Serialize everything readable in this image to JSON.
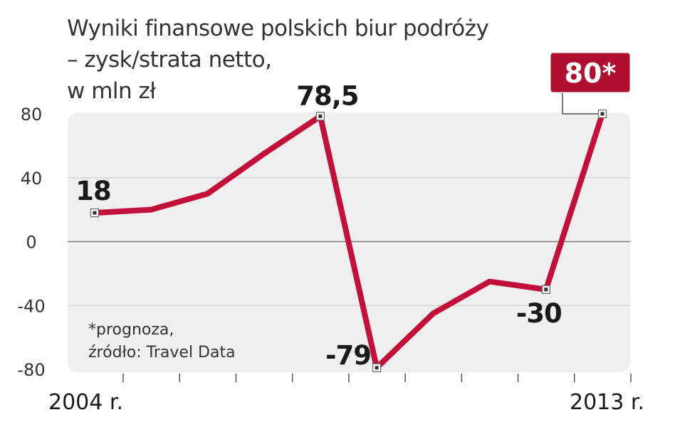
{
  "chart_data": {
    "type": "line",
    "title_lines": [
      "Wyniki finansowe polskich biur podróży",
      "– zysk/strata netto,",
      "w mln zł"
    ],
    "x_start_label": "2004 r.",
    "x_end_label": "2013 r.",
    "x": [
      2004,
      2005,
      2006,
      2007,
      2008,
      2009,
      2010,
      2011,
      2012,
      2013
    ],
    "values": [
      18,
      20,
      30,
      55,
      78.5,
      -79,
      -45,
      -25,
      -30,
      80
    ],
    "ylim": [
      -80,
      80
    ],
    "yticks": [
      80,
      40,
      0,
      -40,
      -80
    ],
    "point_labels": [
      {
        "index": 0,
        "text": "18"
      },
      {
        "index": 4,
        "text": "78,5"
      },
      {
        "index": 5,
        "text": "-79"
      },
      {
        "index": 8,
        "text": "-30"
      }
    ],
    "highlight_label": {
      "index": 9,
      "text": "80*"
    },
    "footnote_lines": [
      "*prognoza,",
      "źródło: Travel Data"
    ],
    "colors": {
      "line": "#c2103a",
      "flag": "#b0102f",
      "plot_bg": "#efefef",
      "grid": "#cfcfcf"
    }
  }
}
